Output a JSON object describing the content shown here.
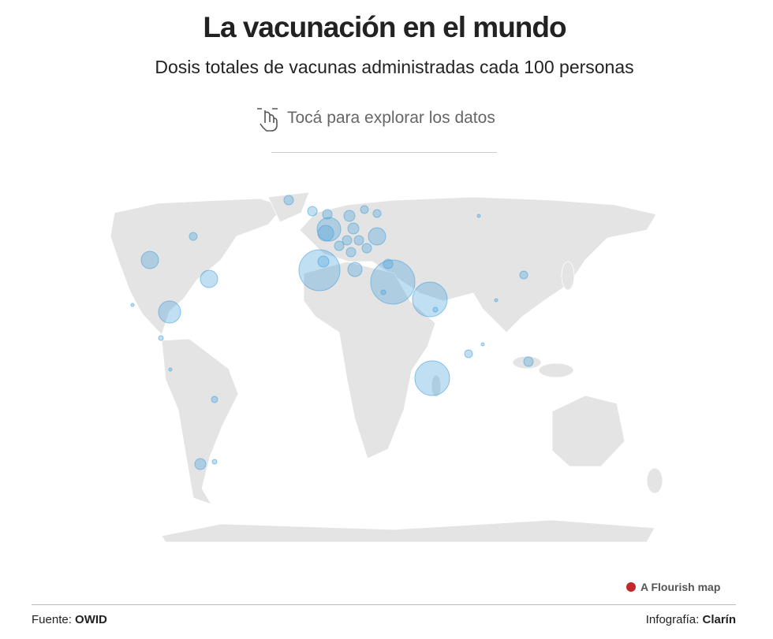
{
  "header": {
    "title": "La vacunación en el mundo",
    "subtitle": "Dosis totales de vacunas administradas cada 100 personas",
    "hint": "Tocá para explorar los datos"
  },
  "credit": "A Flourish map",
  "footer": {
    "source_label": "Fuente:",
    "source": "OWID",
    "byline_label": "Infografía:",
    "byline": "Clarín"
  }
}
